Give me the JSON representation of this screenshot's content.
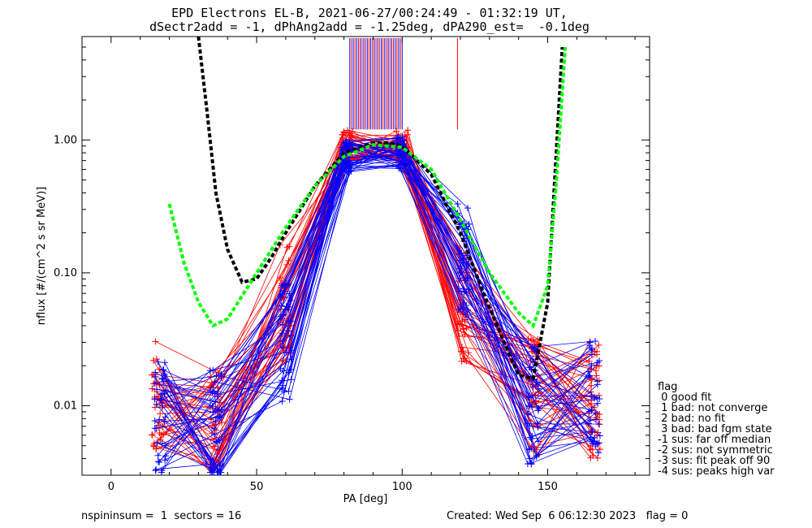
{
  "chart_data": {
    "type": "line",
    "title": "EPD Electrons EL-B, 2021-06-27/00:24:49 - 01:32:19 UT,",
    "subtitle": "dSectr2add = -1, dPhAng2add = -1.25deg, dPA290_est=  -0.1deg",
    "xlabel": "PA [deg]",
    "ylabel": "nflux [#/(cm^2 s sr MeV)]",
    "xlim": [
      -10,
      185
    ],
    "ylim": [
      0.003,
      6
    ],
    "yscale": "log",
    "x_ticks": [
      0,
      50,
      100,
      150
    ],
    "x_tick_labels": [
      "0",
      "50",
      "100",
      "150"
    ],
    "y_ticks": [
      0.01,
      0.1,
      1.0
    ],
    "y_tick_labels": [
      "0.01",
      "0.10",
      "1.00"
    ],
    "colors": {
      "red": "#ff0000",
      "blue": "#0000ff",
      "fit_black": "#000000",
      "fit_green": "#00ff00"
    },
    "series": [
      {
        "color": "red",
        "x": [
          16,
          36,
          60,
          81,
          100,
          121,
          145,
          166
        ],
        "y": [
          0.012,
          0.008,
          0.06,
          0.9,
          0.9,
          0.06,
          0.012,
          0.011
        ]
      },
      {
        "color": "blue",
        "x": [
          17,
          36,
          60,
          81,
          100,
          121,
          145,
          166
        ],
        "y": [
          0.008,
          0.007,
          0.03,
          0.75,
          0.8,
          0.12,
          0.01,
          0.012
        ]
      },
      {
        "color": "black",
        "style": "dashed-fit",
        "x": [
          30,
          33,
          36,
          40,
          45,
          50,
          55,
          60,
          70,
          80,
          90,
          95,
          100,
          110,
          120,
          128,
          135,
          140,
          145,
          150,
          155
        ],
        "y": [
          6,
          1.6,
          0.4,
          0.15,
          0.085,
          0.09,
          0.13,
          0.2,
          0.45,
          0.8,
          0.95,
          0.95,
          0.9,
          0.55,
          0.2,
          0.07,
          0.03,
          0.017,
          0.016,
          0.06,
          5
        ]
      },
      {
        "color": "green",
        "style": "dashed-fit",
        "x": [
          20,
          25,
          30,
          35,
          40,
          50,
          60,
          70,
          80,
          90,
          100,
          110,
          120,
          130,
          140,
          145,
          150,
          153,
          156
        ],
        "y": [
          0.33,
          0.12,
          0.06,
          0.04,
          0.045,
          0.1,
          0.22,
          0.45,
          0.75,
          0.92,
          0.88,
          0.6,
          0.25,
          0.1,
          0.05,
          0.04,
          0.08,
          0.5,
          5
        ]
      }
    ]
  },
  "legend": {
    "title": "flag",
    "items": [
      " 0 good fit",
      " 1 bad: not converge",
      " 2 bad: no fit",
      " 3 bad: bad fgm state",
      "-1 sus: far off median",
      "-2 sus: not symmetric",
      "-3 sus: fit peak off 90",
      "-4 sus: peaks high var"
    ]
  },
  "footer": {
    "left": "nspininsum =  1  sectors = 16",
    "right": "Created: Wed Sep  6 06:12:30 2023   flag = 0"
  }
}
